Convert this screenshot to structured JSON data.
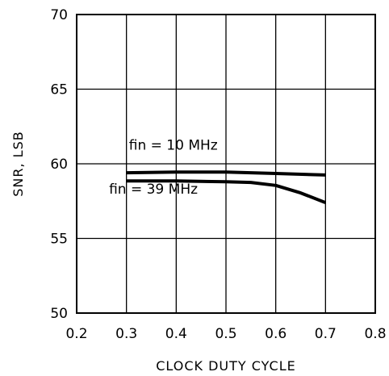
{
  "chart_data": {
    "type": "line",
    "title": "",
    "xlabel": "CLOCK DUTY CYCLE",
    "ylabel": "SNR, LSB",
    "xlim": [
      0.2,
      0.8
    ],
    "ylim": [
      50,
      70
    ],
    "xticks": [
      0.2,
      0.3,
      0.4,
      0.5,
      0.6,
      0.7,
      0.8
    ],
    "yticks": [
      50,
      55,
      60,
      65,
      70
    ],
    "xtick_labels": [
      "0.2",
      "0.3",
      "0.4",
      "0.5",
      "0.6",
      "0.7",
      "0.8"
    ],
    "ytick_labels": [
      "50",
      "55",
      "60",
      "65",
      "70"
    ],
    "grid": true,
    "legend": "none",
    "line_color": "#000000",
    "series": [
      {
        "name": "fin = 10 MHz",
        "x": [
          0.3,
          0.4,
          0.5,
          0.6,
          0.7
        ],
        "y": [
          59.4,
          59.45,
          59.45,
          59.35,
          59.25
        ]
      },
      {
        "name": "fin = 39 MHz",
        "x": [
          0.3,
          0.4,
          0.5,
          0.55,
          0.6,
          0.65,
          0.7
        ],
        "y": [
          58.85,
          58.85,
          58.8,
          58.75,
          58.55,
          58.05,
          57.4
        ]
      }
    ],
    "annotations": [
      {
        "text": "fin = 10 MHz",
        "series": 0
      },
      {
        "text": "fin = 39 MHz",
        "series": 1
      }
    ]
  }
}
